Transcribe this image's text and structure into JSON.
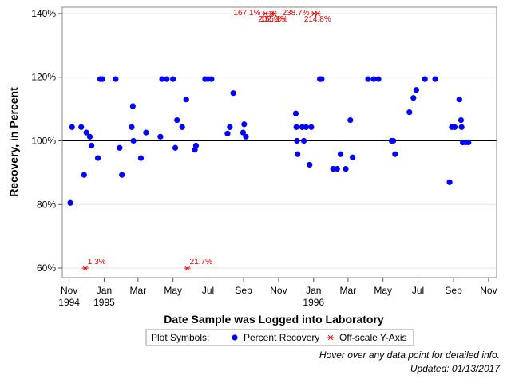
{
  "chart_data": {
    "type": "scatter",
    "xlabel": "Date Sample was Logged into Laboratory",
    "ylabel": "Recovery, in Percent",
    "x_range": [
      "1994-10-20",
      "1996-11-15"
    ],
    "ylim": [
      57,
      142
    ],
    "y_ticks": [
      60,
      80,
      100,
      120,
      140
    ],
    "y_tick_labels": [
      "60%",
      "80%",
      "100%",
      "120%",
      "140%"
    ],
    "x_ticks": [
      {
        "date": "1994-11-01",
        "label": "Nov",
        "label2": "1994"
      },
      {
        "date": "1995-01-01",
        "label": "Jan",
        "label2": "1995"
      },
      {
        "date": "1995-03-01",
        "label": "Mar",
        "label2": ""
      },
      {
        "date": "1995-05-01",
        "label": "May",
        "label2": ""
      },
      {
        "date": "1995-07-01",
        "label": "Jul",
        "label2": ""
      },
      {
        "date": "1995-09-01",
        "label": "Sep",
        "label2": ""
      },
      {
        "date": "1995-11-01",
        "label": "Nov",
        "label2": ""
      },
      {
        "date": "1996-01-01",
        "label": "Jan",
        "label2": "1996"
      },
      {
        "date": "1996-03-01",
        "label": "Mar",
        "label2": ""
      },
      {
        "date": "1996-05-01",
        "label": "May",
        "label2": ""
      },
      {
        "date": "1996-07-01",
        "label": "Jul",
        "label2": ""
      },
      {
        "date": "1996-09-01",
        "label": "Sep",
        "label2": ""
      },
      {
        "date": "1996-11-01",
        "label": "Nov",
        "label2": ""
      }
    ],
    "reference_line": 100,
    "grid": "horizontal",
    "colors": {
      "recovery": "#0000ff",
      "offscale": "#e00000",
      "grid": "#e4e4e4"
    },
    "series": [
      {
        "name": "Percent Recovery",
        "symbol": "circle",
        "points": [
          {
            "x": "1994-11-03",
            "y": 80.5
          },
          {
            "x": "1994-11-06",
            "y": 104.3
          },
          {
            "x": "1994-11-22",
            "y": 104.3
          },
          {
            "x": "1994-11-27",
            "y": 89.3
          },
          {
            "x": "1994-12-01",
            "y": 102.6
          },
          {
            "x": "1994-12-07",
            "y": 101.3
          },
          {
            "x": "1994-12-10",
            "y": 98.5
          },
          {
            "x": "1994-12-21",
            "y": 94.6
          },
          {
            "x": "1994-12-25",
            "y": 119.4
          },
          {
            "x": "1994-12-29",
            "y": 119.4
          },
          {
            "x": "1995-01-21",
            "y": 119.4
          },
          {
            "x": "1995-01-28",
            "y": 97.8
          },
          {
            "x": "1995-02-01",
            "y": 89.3
          },
          {
            "x": "1995-02-18",
            "y": 104.3
          },
          {
            "x": "1995-02-20",
            "y": 110.9
          },
          {
            "x": "1995-02-21",
            "y": 100.0
          },
          {
            "x": "1995-03-06",
            "y": 94.6
          },
          {
            "x": "1995-03-15",
            "y": 102.6
          },
          {
            "x": "1995-04-09",
            "y": 101.3
          },
          {
            "x": "1995-04-12",
            "y": 119.4
          },
          {
            "x": "1995-04-20",
            "y": 119.4
          },
          {
            "x": "1995-05-01",
            "y": 119.4
          },
          {
            "x": "1995-05-05",
            "y": 97.8
          },
          {
            "x": "1995-05-08",
            "y": 106.5
          },
          {
            "x": "1995-05-17",
            "y": 104.3
          },
          {
            "x": "1995-05-24",
            "y": 113.0
          },
          {
            "x": "1995-06-08",
            "y": 97.2
          },
          {
            "x": "1995-06-10",
            "y": 98.5
          },
          {
            "x": "1995-06-26",
            "y": 119.4
          },
          {
            "x": "1995-07-01",
            "y": 119.4
          },
          {
            "x": "1995-07-07",
            "y": 119.4
          },
          {
            "x": "1995-08-04",
            "y": 102.3
          },
          {
            "x": "1995-08-08",
            "y": 104.3
          },
          {
            "x": "1995-08-14",
            "y": 115.0
          },
          {
            "x": "1995-08-31",
            "y": 102.6
          },
          {
            "x": "1995-09-02",
            "y": 105.2
          },
          {
            "x": "1995-09-05",
            "y": 101.3
          },
          {
            "x": "1995-12-01",
            "y": 108.6
          },
          {
            "x": "1995-12-02",
            "y": 104.3
          },
          {
            "x": "1995-12-03",
            "y": 100.0
          },
          {
            "x": "1995-12-04",
            "y": 95.8
          },
          {
            "x": "1995-12-12",
            "y": 104.3
          },
          {
            "x": "1995-12-15",
            "y": 100.0
          },
          {
            "x": "1995-12-19",
            "y": 104.3
          },
          {
            "x": "1995-12-25",
            "y": 92.5
          },
          {
            "x": "1995-12-28",
            "y": 104.3
          },
          {
            "x": "1996-01-12",
            "y": 119.4
          },
          {
            "x": "1996-01-15",
            "y": 119.4
          },
          {
            "x": "1996-02-04",
            "y": 91.2
          },
          {
            "x": "1996-02-11",
            "y": 91.2
          },
          {
            "x": "1996-02-17",
            "y": 95.8
          },
          {
            "x": "1996-02-26",
            "y": 91.2
          },
          {
            "x": "1996-03-05",
            "y": 106.5
          },
          {
            "x": "1996-03-09",
            "y": 94.8
          },
          {
            "x": "1996-04-05",
            "y": 119.4
          },
          {
            "x": "1996-04-15",
            "y": 119.4
          },
          {
            "x": "1996-04-23",
            "y": 119.4
          },
          {
            "x": "1996-05-16",
            "y": 100.0
          },
          {
            "x": "1996-05-19",
            "y": 100.0
          },
          {
            "x": "1996-05-22",
            "y": 95.8
          },
          {
            "x": "1996-06-16",
            "y": 109.0
          },
          {
            "x": "1996-06-23",
            "y": 113.5
          },
          {
            "x": "1996-06-28",
            "y": 116.0
          },
          {
            "x": "1996-07-13",
            "y": 119.4
          },
          {
            "x": "1996-07-31",
            "y": 119.4
          },
          {
            "x": "1996-08-25",
            "y": 87.0
          },
          {
            "x": "1996-08-29",
            "y": 104.3
          },
          {
            "x": "1996-09-03",
            "y": 104.3
          },
          {
            "x": "1996-09-11",
            "y": 113.0
          },
          {
            "x": "1996-09-14",
            "y": 106.5
          },
          {
            "x": "1996-09-15",
            "y": 104.3
          },
          {
            "x": "1996-09-17",
            "y": 99.5
          },
          {
            "x": "1996-09-22",
            "y": 99.5
          },
          {
            "x": "1996-09-27",
            "y": 99.5
          }
        ]
      },
      {
        "name": "Off-scale Y-Axis",
        "symbol": "asterisk",
        "points": [
          {
            "x": "1994-11-29",
            "y": 60,
            "label": "1.3%",
            "label_row": 0
          },
          {
            "x": "1995-05-26",
            "y": 60,
            "label": "21.7%",
            "label_row": 0
          },
          {
            "x": "1995-10-09",
            "y": 140,
            "label": "167.1%",
            "label_row": 0
          },
          {
            "x": "1995-10-20",
            "y": 140,
            "label": "202.9%",
            "label_row": 1
          },
          {
            "x": "1995-10-24",
            "y": 140,
            "label": "155.1%",
            "label_row": 1
          },
          {
            "x": "1996-01-02",
            "y": 140,
            "label": "238.7%",
            "label_row": 0
          },
          {
            "x": "1996-01-08",
            "y": 140,
            "label": "214.8%",
            "label_row": 1
          }
        ]
      }
    ]
  },
  "legend": {
    "title": "Plot Symbols:",
    "items": [
      {
        "label": "Percent Recovery",
        "symbol": "circle"
      },
      {
        "label": "Off-scale Y-Axis",
        "symbol": "asterisk"
      }
    ]
  },
  "footer": {
    "hover_note": "Hover over any data point for detailed info.",
    "updated": "Updated: 01/13/2017"
  }
}
